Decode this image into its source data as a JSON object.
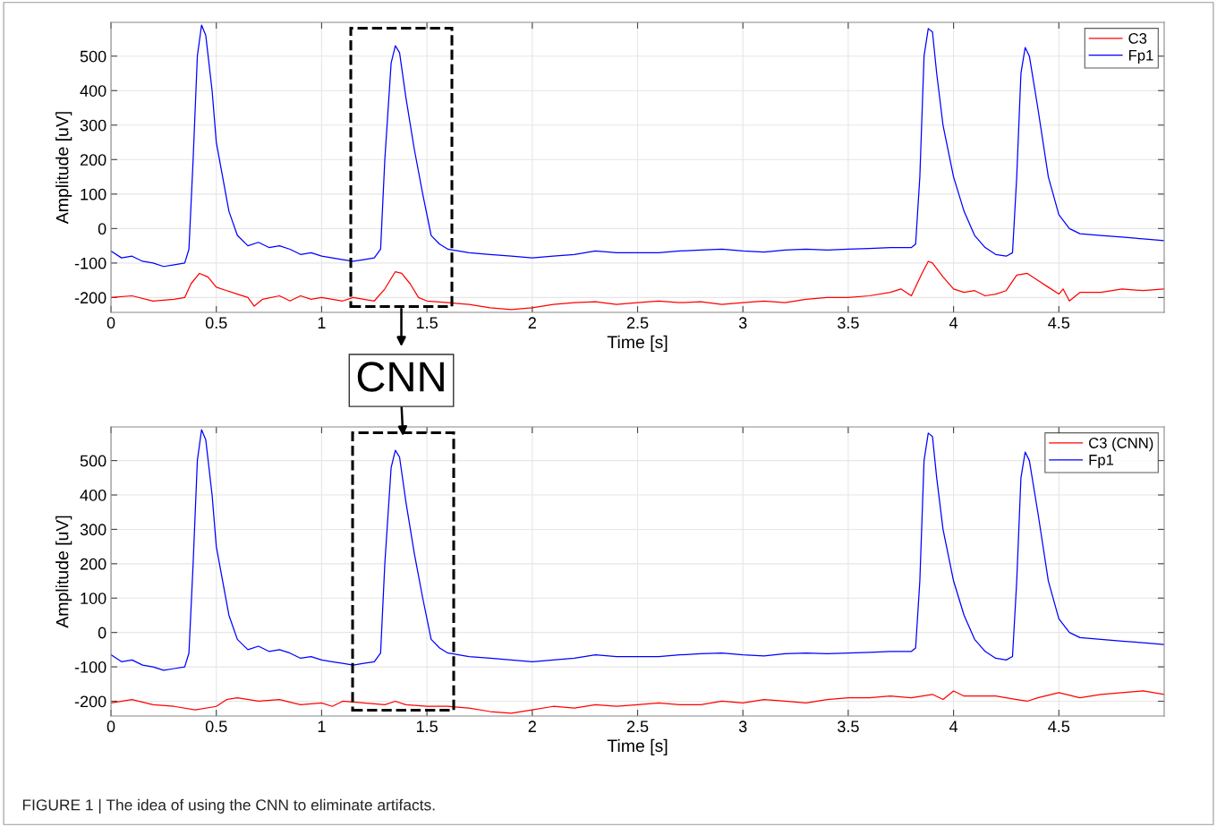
{
  "chart_data": [
    {
      "type": "line",
      "xlabel": "Time [s]",
      "ylabel": "Amplitude [uV]",
      "xlim": [
        0,
        5
      ],
      "ylim": [
        -243,
        598
      ],
      "xticks": [
        0,
        0.5,
        1,
        1.5,
        2,
        2.5,
        3,
        3.5,
        4,
        4.5
      ],
      "yticks": [
        -200,
        -100,
        0,
        100,
        200,
        300,
        400,
        500
      ],
      "grid": true,
      "legend": "top right",
      "line_style": "solid",
      "annotations": [
        "CNN"
      ],
      "series": [
        {
          "name": "C3",
          "color": "#ff0000",
          "x": [
            0,
            0.1,
            0.2,
            0.3,
            0.35,
            0.38,
            0.42,
            0.46,
            0.5,
            0.55,
            0.6,
            0.65,
            0.68,
            0.72,
            0.8,
            0.85,
            0.9,
            0.95,
            1.0,
            1.05,
            1.1,
            1.15,
            1.2,
            1.25,
            1.3,
            1.35,
            1.38,
            1.42,
            1.46,
            1.5,
            1.6,
            1.7,
            1.8,
            1.9,
            2.0,
            2.1,
            2.2,
            2.3,
            2.4,
            2.5,
            2.6,
            2.7,
            2.8,
            2.9,
            3.0,
            3.1,
            3.2,
            3.3,
            3.4,
            3.5,
            3.6,
            3.7,
            3.75,
            3.8,
            3.85,
            3.88,
            3.9,
            3.95,
            4.0,
            4.05,
            4.1,
            4.15,
            4.2,
            4.25,
            4.3,
            4.35,
            4.4,
            4.45,
            4.5,
            4.52,
            4.55,
            4.6,
            4.7,
            4.8,
            4.9,
            5.0
          ],
          "values": [
            -200,
            -195,
            -210,
            -205,
            -200,
            -160,
            -130,
            -140,
            -170,
            -180,
            -190,
            -200,
            -225,
            -205,
            -195,
            -210,
            -195,
            -205,
            -200,
            -205,
            -210,
            -200,
            -205,
            -210,
            -175,
            -125,
            -130,
            -160,
            -200,
            -210,
            -215,
            -220,
            -230,
            -235,
            -230,
            -220,
            -215,
            -212,
            -220,
            -215,
            -210,
            -215,
            -212,
            -220,
            -215,
            -210,
            -215,
            -205,
            -200,
            -200,
            -195,
            -185,
            -175,
            -195,
            -130,
            -95,
            -100,
            -140,
            -175,
            -185,
            -180,
            -195,
            -190,
            -180,
            -135,
            -130,
            -150,
            -170,
            -190,
            -175,
            -210,
            -185,
            -185,
            -175,
            -180,
            -175
          ]
        },
        {
          "name": "Fp1",
          "color": "#0000ff",
          "x": [
            0,
            0.05,
            0.1,
            0.15,
            0.2,
            0.25,
            0.3,
            0.35,
            0.37,
            0.39,
            0.41,
            0.43,
            0.45,
            0.48,
            0.5,
            0.53,
            0.56,
            0.6,
            0.65,
            0.7,
            0.75,
            0.8,
            0.85,
            0.9,
            0.95,
            1.0,
            1.05,
            1.1,
            1.15,
            1.2,
            1.25,
            1.28,
            1.3,
            1.33,
            1.35,
            1.37,
            1.4,
            1.44,
            1.48,
            1.52,
            1.56,
            1.6,
            1.65,
            1.7,
            1.8,
            1.9,
            2.0,
            2.1,
            2.2,
            2.3,
            2.4,
            2.5,
            2.6,
            2.7,
            2.8,
            2.9,
            3.0,
            3.1,
            3.2,
            3.3,
            3.4,
            3.5,
            3.6,
            3.7,
            3.8,
            3.82,
            3.84,
            3.86,
            3.88,
            3.9,
            3.92,
            3.95,
            4.0,
            4.05,
            4.1,
            4.15,
            4.2,
            4.25,
            4.28,
            4.3,
            4.32,
            4.34,
            4.36,
            4.4,
            4.45,
            4.5,
            4.55,
            4.6,
            4.7,
            4.8,
            4.9,
            5.0
          ],
          "values": [
            -65,
            -85,
            -80,
            -95,
            -100,
            -110,
            -105,
            -100,
            -60,
            200,
            500,
            590,
            560,
            400,
            250,
            150,
            50,
            -20,
            -50,
            -40,
            -55,
            -50,
            -60,
            -75,
            -70,
            -80,
            -85,
            -90,
            -95,
            -90,
            -85,
            -60,
            200,
            480,
            530,
            510,
            380,
            230,
            100,
            -20,
            -45,
            -60,
            -65,
            -70,
            -75,
            -80,
            -85,
            -80,
            -75,
            -65,
            -70,
            -70,
            -70,
            -65,
            -62,
            -60,
            -65,
            -68,
            -62,
            -60,
            -62,
            -60,
            -58,
            -55,
            -55,
            -45,
            150,
            500,
            580,
            570,
            450,
            300,
            150,
            50,
            -20,
            -55,
            -75,
            -80,
            -70,
            150,
            450,
            525,
            500,
            350,
            150,
            40,
            0,
            -15,
            -20,
            -25,
            -30,
            -35
          ]
        }
      ]
    },
    {
      "type": "line",
      "xlabel": "Time [s]",
      "ylabel": "Amplitude [uV]",
      "xlim": [
        0,
        5
      ],
      "ylim": [
        -243,
        598
      ],
      "xticks": [
        0,
        0.5,
        1,
        1.5,
        2,
        2.5,
        3,
        3.5,
        4,
        4.5
      ],
      "yticks": [
        -200,
        -100,
        0,
        100,
        200,
        300,
        400,
        500
      ],
      "grid": true,
      "legend": "top right",
      "line_style": "solid",
      "annotations": [
        "FIGURE 1 | The idea of using the CNN to eliminate artifacts."
      ],
      "series": [
        {
          "name": "C3 (CNN)",
          "color": "#ff0000",
          "x": [
            0,
            0.1,
            0.2,
            0.3,
            0.4,
            0.5,
            0.55,
            0.6,
            0.7,
            0.8,
            0.9,
            1.0,
            1.05,
            1.1,
            1.2,
            1.3,
            1.35,
            1.4,
            1.5,
            1.6,
            1.7,
            1.8,
            1.9,
            2.0,
            2.1,
            2.2,
            2.3,
            2.4,
            2.5,
            2.6,
            2.7,
            2.8,
            2.9,
            3.0,
            3.1,
            3.2,
            3.3,
            3.4,
            3.5,
            3.6,
            3.7,
            3.8,
            3.9,
            3.95,
            4.0,
            4.05,
            4.1,
            4.2,
            4.3,
            4.35,
            4.4,
            4.5,
            4.6,
            4.7,
            4.8,
            4.9,
            5.0
          ],
          "values": [
            -205,
            -195,
            -210,
            -215,
            -225,
            -215,
            -195,
            -190,
            -200,
            -195,
            -210,
            -205,
            -215,
            -200,
            -205,
            -210,
            -200,
            -210,
            -215,
            -215,
            -220,
            -230,
            -235,
            -225,
            -215,
            -220,
            -210,
            -215,
            -210,
            -205,
            -210,
            -210,
            -200,
            -205,
            -195,
            -200,
            -205,
            -195,
            -190,
            -190,
            -185,
            -190,
            -180,
            -195,
            -170,
            -185,
            -185,
            -185,
            -195,
            -200,
            -190,
            -175,
            -190,
            -180,
            -175,
            -170,
            -180
          ]
        },
        {
          "name": "Fp1",
          "color": "#0000ff",
          "x": [
            0,
            0.05,
            0.1,
            0.15,
            0.2,
            0.25,
            0.3,
            0.35,
            0.37,
            0.39,
            0.41,
            0.43,
            0.45,
            0.48,
            0.5,
            0.53,
            0.56,
            0.6,
            0.65,
            0.7,
            0.75,
            0.8,
            0.85,
            0.9,
            0.95,
            1.0,
            1.05,
            1.1,
            1.15,
            1.2,
            1.25,
            1.28,
            1.3,
            1.33,
            1.35,
            1.37,
            1.4,
            1.44,
            1.48,
            1.52,
            1.56,
            1.6,
            1.65,
            1.7,
            1.8,
            1.9,
            2.0,
            2.1,
            2.2,
            2.3,
            2.4,
            2.5,
            2.6,
            2.7,
            2.8,
            2.9,
            3.0,
            3.1,
            3.2,
            3.3,
            3.4,
            3.5,
            3.6,
            3.7,
            3.8,
            3.82,
            3.84,
            3.86,
            3.88,
            3.9,
            3.92,
            3.95,
            4.0,
            4.05,
            4.1,
            4.15,
            4.2,
            4.25,
            4.28,
            4.3,
            4.32,
            4.34,
            4.36,
            4.4,
            4.45,
            4.5,
            4.55,
            4.6,
            4.7,
            4.8,
            4.9,
            5.0
          ],
          "values": [
            -65,
            -85,
            -80,
            -95,
            -100,
            -110,
            -105,
            -100,
            -60,
            200,
            500,
            590,
            560,
            400,
            250,
            150,
            50,
            -20,
            -50,
            -40,
            -55,
            -50,
            -60,
            -75,
            -70,
            -80,
            -85,
            -90,
            -95,
            -90,
            -85,
            -60,
            200,
            480,
            530,
            510,
            380,
            230,
            100,
            -20,
            -45,
            -60,
            -65,
            -70,
            -75,
            -80,
            -85,
            -80,
            -75,
            -65,
            -70,
            -70,
            -70,
            -65,
            -62,
            -60,
            -65,
            -68,
            -62,
            -60,
            -62,
            -60,
            -58,
            -55,
            -55,
            -45,
            150,
            500,
            580,
            570,
            450,
            300,
            150,
            50,
            -20,
            -55,
            -75,
            -80,
            -70,
            150,
            450,
            525,
            500,
            350,
            150,
            40,
            0,
            -15,
            -20,
            -25,
            -30,
            -35
          ]
        }
      ]
    }
  ]
}
